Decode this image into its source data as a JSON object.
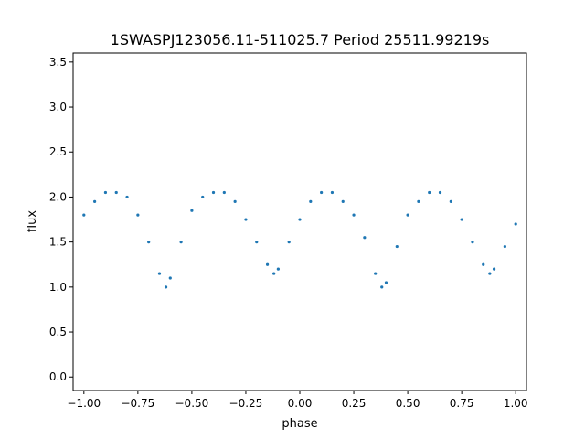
{
  "chart_data": {
    "type": "scatter",
    "title": "1SWASPJ123056.11-511025.7 Period 25511.99219s",
    "xlabel": "phase",
    "ylabel": "flux",
    "xlim": [
      -1.05,
      1.05
    ],
    "ylim": [
      -0.15,
      3.6
    ],
    "xticks": [
      -1.0,
      -0.75,
      -0.5,
      -0.25,
      0.0,
      0.25,
      0.5,
      0.75,
      1.0
    ],
    "xtick_labels": [
      "−1.00",
      "−0.75",
      "−0.50",
      "−0.25",
      "0.00",
      "0.25",
      "0.50",
      "0.75",
      "1.00"
    ],
    "yticks": [
      0.0,
      0.5,
      1.0,
      1.5,
      2.0,
      2.5,
      3.0,
      3.5
    ],
    "ytick_labels": [
      "0.0",
      "0.5",
      "1.0",
      "1.5",
      "2.0",
      "2.5",
      "3.0",
      "3.5"
    ],
    "grid": false,
    "legend": "none",
    "point_color": "#1f77b4",
    "series": [
      {
        "x": [
          -1.0,
          -0.95,
          -0.9,
          -0.85,
          -0.8,
          -0.75,
          -0.7,
          -0.65,
          -0.62,
          -0.6,
          -0.55,
          -0.5,
          -0.45,
          -0.4,
          -0.35,
          -0.3,
          -0.25,
          -0.2,
          -0.15,
          -0.12,
          -0.1,
          -0.05,
          0.0,
          0.05,
          0.1,
          0.15,
          0.2,
          0.25,
          0.3,
          0.35,
          0.38,
          0.4,
          0.45,
          0.5,
          0.55,
          0.6,
          0.65,
          0.7,
          0.75,
          0.8,
          0.85,
          0.88,
          0.9,
          0.95,
          1.0
        ],
        "y": [
          1.8,
          1.95,
          2.05,
          2.05,
          2.0,
          1.8,
          1.5,
          1.15,
          1.0,
          1.1,
          1.5,
          1.85,
          2.0,
          2.05,
          2.05,
          1.95,
          1.75,
          1.5,
          1.25,
          1.15,
          1.2,
          1.5,
          1.75,
          1.95,
          2.05,
          2.05,
          1.95,
          1.8,
          1.55,
          1.15,
          1.0,
          1.05,
          1.45,
          1.8,
          1.95,
          2.05,
          2.05,
          1.95,
          1.75,
          1.5,
          1.25,
          1.15,
          1.2,
          1.45,
          1.7
        ]
      }
    ]
  }
}
